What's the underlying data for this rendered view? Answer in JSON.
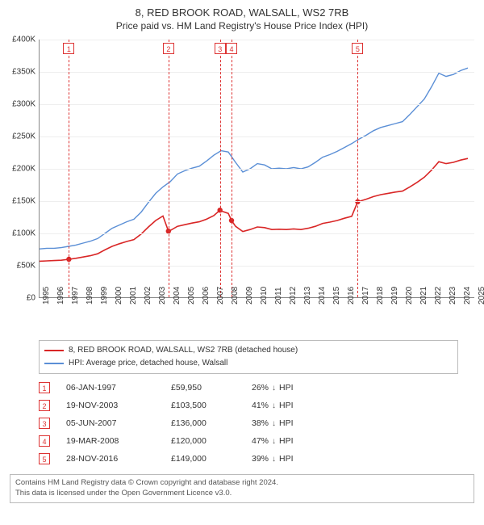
{
  "header": {
    "title": "8, RED BROOK ROAD, WALSALL, WS2 7RB",
    "subtitle": "Price paid vs. HM Land Registry's House Price Index (HPI)"
  },
  "chart": {
    "type": "line",
    "xlim": [
      1995,
      2025
    ],
    "ylim": [
      0,
      400000
    ],
    "ytick_step": 50000,
    "yticks": [
      "£0",
      "£50K",
      "£100K",
      "£150K",
      "£200K",
      "£250K",
      "£300K",
      "£350K",
      "£400K"
    ],
    "xticks": [
      1995,
      1996,
      1997,
      1998,
      1999,
      2000,
      2001,
      2002,
      2003,
      2004,
      2005,
      2006,
      2007,
      2008,
      2009,
      2010,
      2011,
      2012,
      2013,
      2014,
      2015,
      2016,
      2017,
      2018,
      2019,
      2020,
      2021,
      2022,
      2023,
      2024,
      2025
    ],
    "grid_color": "#eeeeee",
    "axis_color": "#888888",
    "background_color": "#ffffff",
    "label_fontsize": 10,
    "series": [
      {
        "name": "hpi",
        "label": "HPI: Average price, detached house, Walsall",
        "color": "#5b8fd6",
        "line_width": 1.4,
        "data": [
          [
            1995,
            76000
          ],
          [
            1995.5,
            77000
          ],
          [
            1996,
            77000
          ],
          [
            1996.5,
            78000
          ],
          [
            1997,
            80000
          ],
          [
            1997.5,
            82000
          ],
          [
            1998,
            85000
          ],
          [
            1998.5,
            88000
          ],
          [
            1999,
            92000
          ],
          [
            1999.5,
            100000
          ],
          [
            2000,
            108000
          ],
          [
            2000.5,
            113000
          ],
          [
            2001,
            118000
          ],
          [
            2001.5,
            122000
          ],
          [
            2002,
            133000
          ],
          [
            2002.5,
            148000
          ],
          [
            2003,
            162000
          ],
          [
            2003.5,
            172000
          ],
          [
            2004,
            180000
          ],
          [
            2004.5,
            192000
          ],
          [
            2005,
            197000
          ],
          [
            2005.5,
            201000
          ],
          [
            2006,
            204000
          ],
          [
            2006.5,
            212000
          ],
          [
            2007,
            221000
          ],
          [
            2007.5,
            228000
          ],
          [
            2008,
            226000
          ],
          [
            2008.5,
            210000
          ],
          [
            2009,
            195000
          ],
          [
            2009.5,
            200000
          ],
          [
            2010,
            208000
          ],
          [
            2010.5,
            206000
          ],
          [
            2011,
            200000
          ],
          [
            2011.5,
            201000
          ],
          [
            2012,
            200000
          ],
          [
            2012.5,
            202000
          ],
          [
            2013,
            200000
          ],
          [
            2013.5,
            203000
          ],
          [
            2014,
            210000
          ],
          [
            2014.5,
            218000
          ],
          [
            2015,
            222000
          ],
          [
            2015.5,
            227000
          ],
          [
            2016,
            233000
          ],
          [
            2016.5,
            239000
          ],
          [
            2017,
            246000
          ],
          [
            2017.5,
            252000
          ],
          [
            2018,
            259000
          ],
          [
            2018.5,
            264000
          ],
          [
            2019,
            267000
          ],
          [
            2019.5,
            270000
          ],
          [
            2020,
            273000
          ],
          [
            2020.5,
            284000
          ],
          [
            2021,
            296000
          ],
          [
            2021.5,
            308000
          ],
          [
            2022,
            327000
          ],
          [
            2022.5,
            348000
          ],
          [
            2023,
            343000
          ],
          [
            2023.5,
            346000
          ],
          [
            2024,
            352000
          ],
          [
            2024.5,
            356000
          ]
        ]
      },
      {
        "name": "property",
        "label": "8, RED BROOK ROAD, WALSALL, WS2 7RB (detached house)",
        "color": "#d92626",
        "line_width": 1.6,
        "data": [
          [
            1995,
            57000
          ],
          [
            1995.5,
            57500
          ],
          [
            1996,
            58000
          ],
          [
            1996.5,
            58500
          ],
          [
            1997.02,
            59950
          ],
          [
            1997.5,
            61500
          ],
          [
            1998,
            63500
          ],
          [
            1998.5,
            65500
          ],
          [
            1999,
            68500
          ],
          [
            1999.5,
            74500
          ],
          [
            2000,
            80000
          ],
          [
            2000.5,
            84000
          ],
          [
            2001,
            87500
          ],
          [
            2001.5,
            90500
          ],
          [
            2002,
            99000
          ],
          [
            2002.5,
            110000
          ],
          [
            2003,
            120000
          ],
          [
            2003.5,
            127000
          ],
          [
            2003.88,
            103500
          ],
          [
            2004,
            104500
          ],
          [
            2004.5,
            111000
          ],
          [
            2005,
            113500
          ],
          [
            2005.5,
            116000
          ],
          [
            2006,
            118000
          ],
          [
            2006.5,
            122000
          ],
          [
            2007,
            127500
          ],
          [
            2007.43,
            136000
          ],
          [
            2007.6,
            134000
          ],
          [
            2008,
            131000
          ],
          [
            2008.22,
            120000
          ],
          [
            2008.5,
            111000
          ],
          [
            2009,
            103000
          ],
          [
            2009.5,
            106000
          ],
          [
            2010,
            110000
          ],
          [
            2010.5,
            109000
          ],
          [
            2011,
            106000
          ],
          [
            2011.5,
            106500
          ],
          [
            2012,
            106000
          ],
          [
            2012.5,
            107000
          ],
          [
            2013,
            106000
          ],
          [
            2013.5,
            108000
          ],
          [
            2014,
            111000
          ],
          [
            2014.5,
            115500
          ],
          [
            2015,
            117500
          ],
          [
            2015.5,
            120000
          ],
          [
            2016,
            123500
          ],
          [
            2016.5,
            126500
          ],
          [
            2016.91,
            149000
          ],
          [
            2017,
            149500
          ],
          [
            2017.5,
            153000
          ],
          [
            2018,
            157000
          ],
          [
            2018.5,
            160000
          ],
          [
            2019,
            162000
          ],
          [
            2019.5,
            164000
          ],
          [
            2020,
            165500
          ],
          [
            2020.5,
            172000
          ],
          [
            2021,
            179000
          ],
          [
            2021.5,
            187000
          ],
          [
            2022,
            198000
          ],
          [
            2022.5,
            211000
          ],
          [
            2023,
            208000
          ],
          [
            2023.5,
            210000
          ],
          [
            2024,
            213500
          ],
          [
            2024.5,
            216000
          ]
        ],
        "markers": [
          {
            "n": "1",
            "x": 1997.02,
            "y": 59950
          },
          {
            "n": "2",
            "x": 2003.88,
            "y": 103500
          },
          {
            "n": "3",
            "x": 2007.43,
            "y": 136000
          },
          {
            "n": "4",
            "x": 2008.22,
            "y": 120000
          },
          {
            "n": "5",
            "x": 2016.91,
            "y": 149000
          }
        ]
      }
    ]
  },
  "legend": {
    "items": [
      {
        "color": "#d92626",
        "label": "8, RED BROOK ROAD, WALSALL, WS2 7RB (detached house)"
      },
      {
        "color": "#5b8fd6",
        "label": "HPI: Average price, detached house, Walsall"
      }
    ]
  },
  "sales": [
    {
      "n": "1",
      "date": "06-JAN-1997",
      "price": "£59,950",
      "pct": "26%",
      "suffix": "HPI"
    },
    {
      "n": "2",
      "date": "19-NOV-2003",
      "price": "£103,500",
      "pct": "41%",
      "suffix": "HPI"
    },
    {
      "n": "3",
      "date": "05-JUN-2007",
      "price": "£136,000",
      "pct": "38%",
      "suffix": "HPI"
    },
    {
      "n": "4",
      "date": "19-MAR-2008",
      "price": "£120,000",
      "pct": "47%",
      "suffix": "HPI"
    },
    {
      "n": "5",
      "date": "28-NOV-2016",
      "price": "£149,000",
      "pct": "39%",
      "suffix": "HPI"
    }
  ],
  "footer": {
    "line1": "Contains HM Land Registry data © Crown copyright and database right 2024.",
    "line2": "This data is licensed under the Open Government Licence v3.0."
  }
}
